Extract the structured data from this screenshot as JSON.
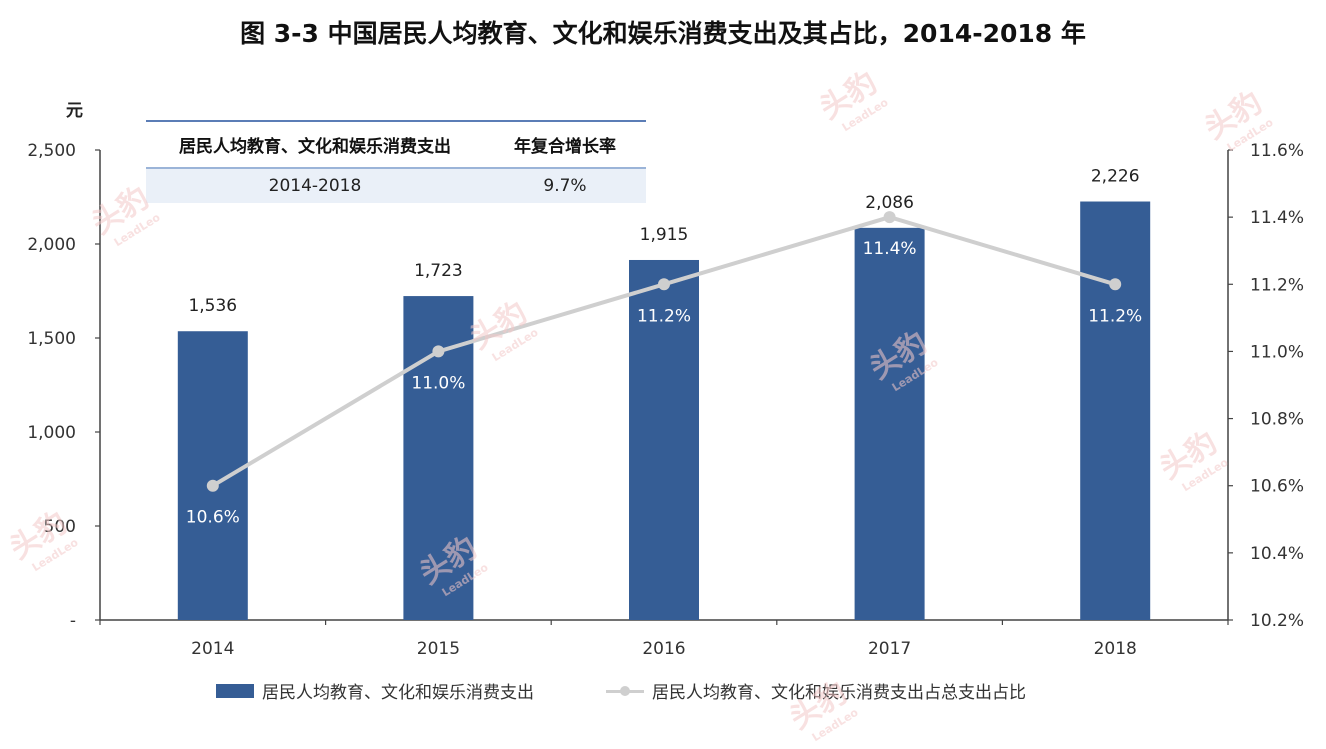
{
  "title": "图  3-3 中国居民人均教育、文化和娱乐消费支出及其占比，2014-2018 年",
  "unit_label": "元",
  "cagr_table": {
    "headers": [
      "居民人均教育、文化和娱乐消费支出",
      "年复合增长率"
    ],
    "row": [
      "2014-2018",
      "9.7%"
    ]
  },
  "watermark": {
    "text": "头豹",
    "sub": "LeadLeo"
  },
  "colors": {
    "bar": "#355d95",
    "line": "#cfcfcf",
    "table_head_border": "#5b7db6",
    "table_row_bg": "#eaf0f8"
  },
  "chart_data": {
    "type": "bar",
    "categories": [
      "2014",
      "2015",
      "2016",
      "2017",
      "2018"
    ],
    "series": [
      {
        "name": "居民人均教育、文化和娱乐消费支出",
        "type": "bar",
        "axis": "left",
        "values": [
          1536,
          1723,
          1915,
          2086,
          2226
        ],
        "labels": [
          "1,536",
          "1,723",
          "1,915",
          "2,086",
          "2,226"
        ]
      },
      {
        "name": "居民人均教育、文化和娱乐消费支出占总支出占比",
        "type": "line",
        "axis": "right",
        "values": [
          10.6,
          11.0,
          11.2,
          11.4,
          11.2
        ],
        "labels": [
          "10.6%",
          "11.0%",
          "11.2%",
          "11.4%",
          "11.2%"
        ]
      }
    ],
    "y_left": {
      "ylim": [
        0,
        2500
      ],
      "ticks": [
        "-",
        "500",
        "1,000",
        "1,500",
        "2,000",
        "2,500"
      ]
    },
    "y_right": {
      "ylim": [
        10.2,
        11.6
      ],
      "ticks": [
        "10.2%",
        "10.4%",
        "10.6%",
        "10.8%",
        "11.0%",
        "11.2%",
        "11.4%",
        "11.6%"
      ]
    },
    "legend_position": "bottom",
    "grid": false
  }
}
